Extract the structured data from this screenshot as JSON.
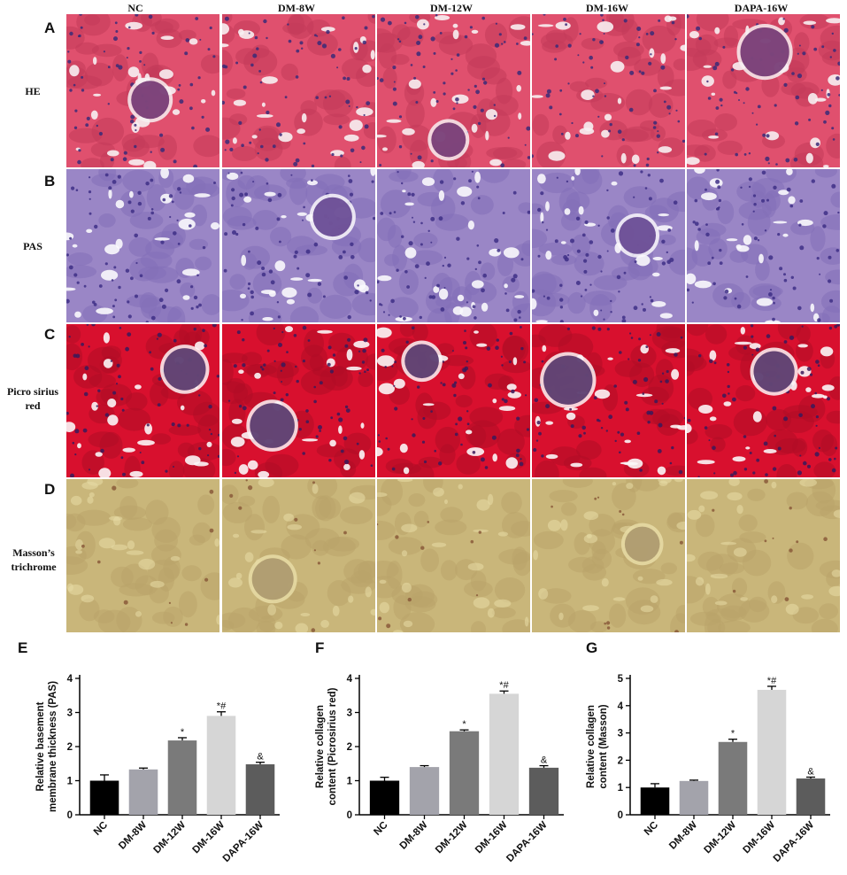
{
  "columns": [
    "NC",
    "DM-8W",
    "DM-12W",
    "DM-16W",
    "DAPA-16W"
  ],
  "rows": [
    {
      "letter": "A",
      "label": "HE",
      "stain": "he"
    },
    {
      "letter": "B",
      "label": "PAS",
      "stain": "pas"
    },
    {
      "letter": "C",
      "label": "Picro sirius red",
      "stain": "picro"
    },
    {
      "letter": "D",
      "label": "Masson’s trichrome",
      "stain": "masson"
    }
  ],
  "chart_data": [
    {
      "panel": "E",
      "type": "bar",
      "categories": [
        "NC",
        "DM-8W",
        "DM-12W",
        "DM-16W",
        "DAPA-16W"
      ],
      "values": [
        1.0,
        1.33,
        2.18,
        2.9,
        1.48
      ],
      "errors": [
        0.17,
        0.04,
        0.08,
        0.12,
        0.06
      ],
      "annotations": [
        "",
        "",
        "*",
        "*#",
        "&"
      ],
      "colors": [
        "#000000",
        "#a3a3ab",
        "#7a7a7a",
        "#d6d6d6",
        "#5c5c5c"
      ],
      "ylabel": "Relative basement membrane thickness (PAS)",
      "ylim": [
        0,
        4
      ],
      "yticks": [
        0,
        1,
        2,
        3,
        4
      ]
    },
    {
      "panel": "F",
      "type": "bar",
      "categories": [
        "NC",
        "DM-8W",
        "DM-12W",
        "DM-16W",
        "DAPA-16W"
      ],
      "values": [
        1.0,
        1.4,
        2.45,
        3.55,
        1.38
      ],
      "errors": [
        0.1,
        0.04,
        0.04,
        0.08,
        0.06
      ],
      "annotations": [
        "",
        "",
        "*",
        "*#",
        "&"
      ],
      "colors": [
        "#000000",
        "#a3a3ab",
        "#7a7a7a",
        "#d6d6d6",
        "#5c5c5c"
      ],
      "ylabel": "Relative collagen content (Picrosirius red)",
      "ylim": [
        0,
        4
      ],
      "yticks": [
        0,
        1,
        2,
        3,
        4
      ]
    },
    {
      "panel": "G",
      "type": "bar",
      "categories": [
        "NC",
        "DM-8W",
        "DM-12W",
        "DM-16W",
        "DAPA-16W"
      ],
      "values": [
        1.0,
        1.24,
        2.67,
        4.58,
        1.33
      ],
      "errors": [
        0.14,
        0.03,
        0.1,
        0.13,
        0.05
      ],
      "annotations": [
        "",
        "",
        "*",
        "*#",
        "&"
      ],
      "colors": [
        "#000000",
        "#a3a3ab",
        "#7a7a7a",
        "#d6d6d6",
        "#5c5c5c"
      ],
      "ylabel": "Relative collagen content (Masson)",
      "ylim": [
        0,
        5
      ],
      "yticks": [
        0,
        1,
        2,
        3,
        4,
        5
      ]
    }
  ]
}
